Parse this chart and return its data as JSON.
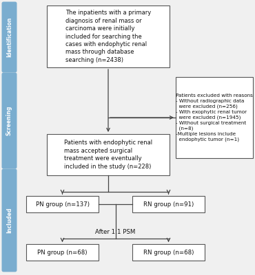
{
  "bg_color": "#f0f0f0",
  "sidebar_color": "#7aadcf",
  "box_border_color": "#555555",
  "box_bg": "#ffffff",
  "text_color": "#111111",
  "sidebar_labels": [
    "Identification",
    "Screening",
    "Included"
  ],
  "box1_text": "The inpatients with a primary\ndiagnosis of renal mass or\ncarcinoma were initially\nincluded for searching the\ncases with endophytic renal\nmass through database\nsearching (n=2438)",
  "box2_text": "Patients excluded with reasons\n- Without radiographic data\n  were excluded (n=256)\n- With exophytic renal tumor\n  were excluded (n=1945)\n- Without surgical treatment\n  (n=8)\n-Multiple lesions include\n  endophytic tumor (n=1)",
  "box3_text": "Patients with endophytic renal\nmass accepted surgical\ntreatment were eventually\nincluded in the study (n=228)",
  "box4a_text": "PN group (n=137)",
  "box4b_text": "RN group (n=91)",
  "psm_text": "After 1:1 PSM",
  "box5a_text": "PN group (n=68)",
  "box5b_text": "RN group (n=68)"
}
